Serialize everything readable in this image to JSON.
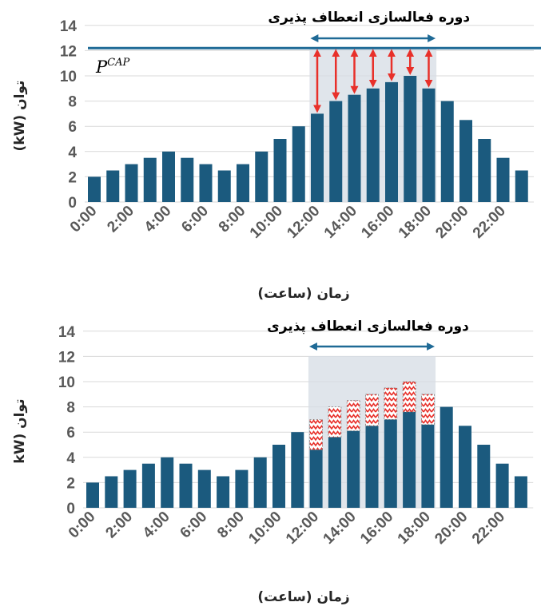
{
  "colors": {
    "bar": "#1b5a7e",
    "cap_line": "#1f6a96",
    "shade": "#d6dce4",
    "arrow": "#e8302a",
    "flex_arrow": "#1f6a96",
    "axis_text": "#595959"
  },
  "chart_data": [
    {
      "type": "bar",
      "categories": [
        "0:00",
        "1:00",
        "2:00",
        "3:00",
        "4:00",
        "5:00",
        "6:00",
        "7:00",
        "8:00",
        "9:00",
        "10:00",
        "11:00",
        "12:00",
        "13:00",
        "14:00",
        "15:00",
        "16:00",
        "17:00",
        "18:00",
        "19:00",
        "20:00",
        "21:00",
        "22:00",
        "23:00"
      ],
      "tick_labels": [
        "0:00",
        "2:00",
        "4:00",
        "6:00",
        "8:00",
        "10:00",
        "12:00",
        "14:00",
        "16:00",
        "18:00",
        "20:00",
        "22:00"
      ],
      "values": [
        2,
        2.5,
        3,
        3.5,
        4,
        3.5,
        3,
        2.5,
        3,
        4,
        5,
        6,
        7,
        8,
        8.5,
        9,
        9.5,
        10,
        9,
        8,
        6.5,
        5,
        3.5,
        2.5
      ],
      "ylim": [
        0,
        14
      ],
      "yticks": [
        0,
        2,
        4,
        6,
        8,
        10,
        12,
        14
      ],
      "ylabel": "توان (kW)",
      "xlabel": "زمان (ساعت)",
      "cap_value": 12.2,
      "cap_label": "P",
      "cap_superscript": "CAP",
      "flex_label": "دوره فعالسازی انعطاف پذیری",
      "flex_window": [
        12,
        18
      ],
      "grid": true
    },
    {
      "type": "bar",
      "categories": [
        "0:00",
        "1:00",
        "2:00",
        "3:00",
        "4:00",
        "5:00",
        "6:00",
        "7:00",
        "8:00",
        "9:00",
        "10:00",
        "11:00",
        "12:00",
        "13:00",
        "14:00",
        "15:00",
        "16:00",
        "17:00",
        "18:00",
        "19:00",
        "20:00",
        "21:00",
        "22:00",
        "23:00"
      ],
      "tick_labels": [
        "0:00",
        "2:00",
        "4:00",
        "6:00",
        "8:00",
        "10:00",
        "12:00",
        "14:00",
        "16:00",
        "18:00",
        "20:00",
        "22:00"
      ],
      "values": [
        2,
        2.5,
        3,
        3.5,
        4,
        3.5,
        3,
        2.5,
        3,
        4,
        5,
        6,
        4.6,
        5.6,
        6.1,
        6.5,
        7,
        7.6,
        6.6,
        8,
        6.5,
        5,
        3.5,
        2.5
      ],
      "reduced": [
        0,
        0,
        0,
        0,
        0,
        0,
        0,
        0,
        0,
        0,
        0,
        0,
        2.4,
        2.4,
        2.4,
        2.5,
        2.5,
        2.4,
        2.4,
        0,
        0,
        0,
        0,
        0
      ],
      "ylim": [
        0,
        14
      ],
      "yticks": [
        0,
        2,
        4,
        6,
        8,
        10,
        12,
        14
      ],
      "ylabel": "توان (kW",
      "xlabel": "زمان (ساعت)",
      "flex_label": "دوره فعالسازی انعطاف پذیری",
      "flex_window": [
        12,
        18
      ],
      "grid": true
    }
  ]
}
